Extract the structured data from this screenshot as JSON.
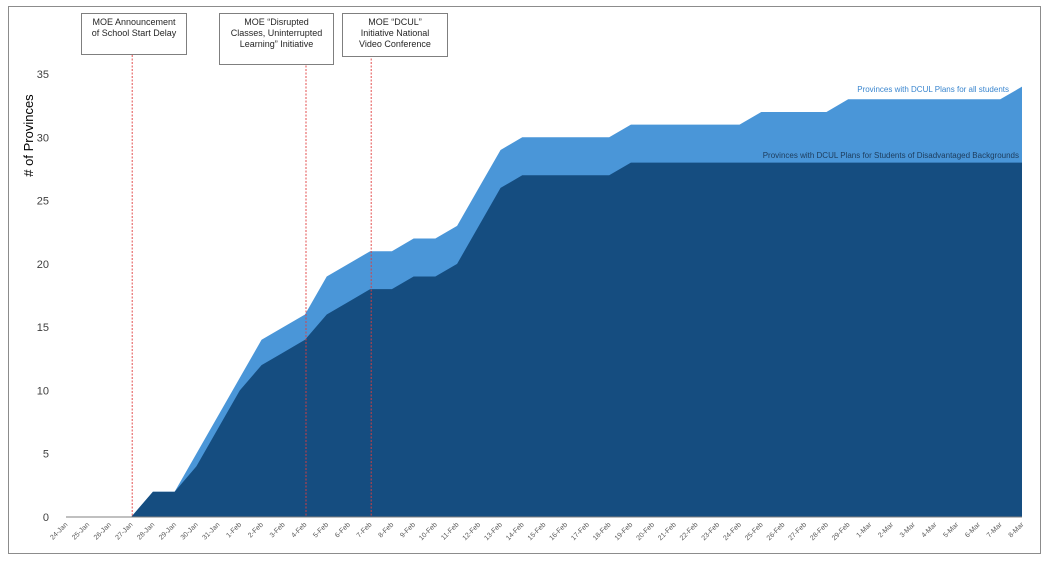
{
  "chart_data": {
    "type": "area",
    "ylabel": "# of Provinces",
    "xlabel": "",
    "ylim": [
      0,
      35
    ],
    "yticks": [
      0,
      5,
      10,
      15,
      20,
      25,
      30,
      35
    ],
    "grid": false,
    "categories": [
      "24-Jan",
      "25-Jan",
      "26-Jan",
      "27-Jan",
      "28-Jan",
      "29-Jan",
      "30-Jan",
      "31-Jan",
      "1-Feb",
      "2-Feb",
      "3-Feb",
      "4-Feb",
      "5-Feb",
      "6-Feb",
      "7-Feb",
      "8-Feb",
      "9-Feb",
      "10-Feb",
      "11-Feb",
      "12-Feb",
      "13-Feb",
      "14-Feb",
      "15-Feb",
      "16-Feb",
      "17-Feb",
      "18-Feb",
      "19-Feb",
      "20-Feb",
      "21-Feb",
      "22-Feb",
      "23-Feb",
      "24-Feb",
      "25-Feb",
      "26-Feb",
      "27-Feb",
      "28-Feb",
      "29-Feb",
      "1-Mar",
      "2-Mar",
      "3-Mar",
      "4-Mar",
      "5-Mar",
      "6-Mar",
      "7-Mar",
      "8-Mar"
    ],
    "series": [
      {
        "name": "Provinces with DCUL Plans for all students",
        "color": "#4a96d8",
        "values": [
          0,
          0,
          0,
          0,
          2,
          2,
          5,
          8,
          11,
          14,
          15,
          16,
          19,
          20,
          21,
          21,
          22,
          22,
          23,
          26,
          29,
          30,
          30,
          30,
          30,
          30,
          31,
          31,
          31,
          31,
          31,
          31,
          32,
          32,
          32,
          32,
          33,
          33,
          33,
          33,
          33,
          33,
          33,
          33,
          34
        ]
      },
      {
        "name": "Provinces with DCUL Plans for Students of Disadvantaged Backgrounds",
        "color": "#154d80",
        "values": [
          0,
          0,
          0,
          0,
          2,
          2,
          4,
          7,
          10,
          12,
          13,
          14,
          16,
          17,
          18,
          18,
          19,
          19,
          20,
          23,
          26,
          27,
          27,
          27,
          27,
          27,
          28,
          28,
          28,
          28,
          28,
          28,
          28,
          28,
          28,
          28,
          28,
          28,
          28,
          28,
          28,
          28,
          28,
          28,
          28
        ]
      }
    ],
    "annotations": [
      {
        "category": "27-Jan",
        "text_lines": [
          "MOE Announcement",
          "of School Start Delay"
        ]
      },
      {
        "category": "4-Feb",
        "text_lines": [
          "MOE “Disrupted",
          "Classes, Uninterrupted",
          "Learning” Initiative"
        ]
      },
      {
        "category": "7-Feb",
        "text_lines": [
          "MOE “DCUL”",
          "Initiative National",
          "Video Conference"
        ]
      }
    ],
    "annotation_line_color": "#e03c3c"
  }
}
